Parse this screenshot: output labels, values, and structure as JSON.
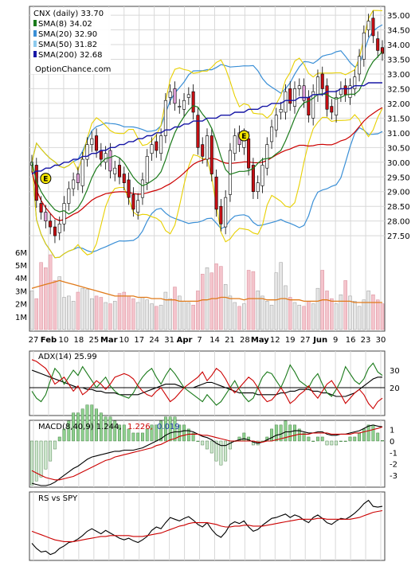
{
  "chart_data": [
    {
      "type": "candlestick",
      "panel": "price",
      "title": "CNX (daily) 33.70",
      "watermark": "OptionChance.com",
      "legend": [
        {
          "label": "SMA(8) 34.02",
          "color": "#1a7a1a"
        },
        {
          "label": "SMA(20) 32.90",
          "color": "#3a8fd6"
        },
        {
          "label": "SMA(50) 31.82",
          "color": "#8ecbee"
        },
        {
          "label": "SMA(200) 32.68",
          "color": "#1616a6"
        }
      ],
      "ylim": [
        26.8,
        35.3
      ],
      "yticks": [
        "35.00",
        "34.50",
        "34.00",
        "33.50",
        "33.00",
        "32.50",
        "32.00",
        "31.50",
        "31.00",
        "30.50",
        "30.00",
        "29.50",
        "29.00",
        "28.50",
        "28.00",
        "27.50"
      ],
      "xticks": [
        "27",
        "Feb",
        "10",
        "18",
        "25",
        "Mar",
        "10",
        "17",
        "24",
        "31",
        "Apr",
        "7",
        "14",
        "21",
        "28",
        "May",
        "12",
        "19",
        "27",
        "Jun",
        "9",
        "16",
        "23",
        "30"
      ],
      "bold_xticks": [
        "Feb",
        "Mar",
        "Apr",
        "May",
        "Jun"
      ],
      "earnings_markers": [
        {
          "label": "E",
          "close": 29.45
        },
        {
          "label": "E",
          "close": 30.9
        }
      ],
      "close": [
        30.0,
        28.7,
        28.3,
        28.0,
        27.8,
        27.5,
        27.9,
        28.6,
        29.1,
        29.4,
        29.3,
        30.1,
        30.6,
        30.8,
        30.4,
        30.1,
        30.3,
        29.7,
        29.8,
        29.5,
        29.3,
        28.8,
        28.4,
        28.7,
        29.4,
        30.2,
        30.6,
        30.4,
        30.9,
        32.1,
        32.4,
        32.0,
        31.9,
        32.1,
        32.3,
        31.7,
        30.5,
        30.2,
        30.9,
        29.6,
        28.4,
        27.9,
        28.8,
        30.4,
        30.9,
        30.6,
        30.9,
        29.8,
        29.0,
        29.3,
        29.9,
        30.6,
        31.2,
        31.6,
        31.8,
        32.4,
        32.0,
        32.5,
        32.6,
        32.1,
        31.6,
        32.4,
        32.9,
        32.5,
        31.8,
        31.7,
        32.2,
        32.5,
        32.3,
        32.6,
        32.9,
        33.6,
        34.4,
        34.8,
        34.3,
        33.8,
        33.7
      ],
      "open": [
        29.9,
        29.9,
        28.6,
        28.3,
        28.0,
        27.8,
        27.6,
        27.9,
        28.6,
        29.1,
        29.6,
        29.2,
        30.1,
        30.6,
        30.9,
        30.4,
        30.0,
        30.4,
        29.6,
        29.9,
        29.6,
        29.4,
        28.9,
        28.3,
        28.8,
        29.3,
        30.3,
        30.7,
        30.3,
        30.9,
        32.2,
        32.5,
        31.9,
        31.8,
        32.2,
        32.4,
        31.6,
        30.6,
        30.1,
        30.9,
        29.5,
        28.5,
        27.8,
        28.9,
        30.3,
        31.0,
        30.5,
        30.8,
        29.9,
        29.0,
        29.2,
        29.8,
        30.7,
        31.1,
        31.7,
        31.7,
        32.5,
        31.9,
        32.5,
        32.6,
        32.2,
        31.5,
        32.3,
        33.0,
        32.6,
        31.9,
        31.6,
        32.3,
        32.6,
        32.2,
        32.5,
        33.0,
        33.5,
        34.5,
        34.9,
        34.2,
        33.9
      ],
      "sma200": [
        29.6,
        29.7,
        29.7,
        29.8,
        29.8,
        29.9,
        29.9,
        30.0,
        30.0,
        30.1,
        30.1,
        30.2,
        30.2,
        30.3,
        30.3,
        30.4,
        30.4,
        30.5,
        30.5,
        30.6,
        30.6,
        30.7,
        30.7,
        30.8,
        30.8,
        30.9,
        30.9,
        31.0,
        31.0,
        31.1,
        31.1,
        31.2,
        31.2,
        31.3,
        31.3,
        31.4,
        31.4,
        31.4,
        31.5,
        31.5,
        31.5,
        31.6,
        31.6,
        31.6,
        31.7,
        31.7,
        31.7,
        31.8,
        31.8,
        31.8,
        31.9,
        31.9,
        32.0,
        32.0,
        32.0,
        32.1,
        32.1,
        32.1,
        32.2,
        32.2,
        32.2,
        32.3,
        32.3,
        32.3,
        32.4,
        32.4,
        32.4,
        32.5,
        32.5,
        32.5,
        32.6,
        32.6,
        32.6,
        32.7,
        32.7,
        32.7,
        32.7
      ]
    },
    {
      "type": "bar",
      "panel": "volume",
      "yticks": [
        "6M",
        "5M",
        "4M",
        "3M",
        "2M",
        "1M"
      ],
      "values_m": [
        3.0,
        2.4,
        5.2,
        4.8,
        5.8,
        3.8,
        4.1,
        2.5,
        2.6,
        2.2,
        2.9,
        3.2,
        3.1,
        2.4,
        2.6,
        2.5,
        2.1,
        2.0,
        2.2,
        2.8,
        2.9,
        2.6,
        2.4,
        2.1,
        2.5,
        2.3,
        2.0,
        1.8,
        1.9,
        2.9,
        2.4,
        3.3,
        2.6,
        2.2,
        2.1,
        1.9,
        3.0,
        4.3,
        4.8,
        4.4,
        5.1,
        4.9,
        3.5,
        2.6,
        2.1,
        1.8,
        2.0,
        4.6,
        4.5,
        3.0,
        2.6,
        2.2,
        1.9,
        4.4,
        5.2,
        3.4,
        2.5,
        2.1,
        1.9,
        1.8,
        2.2,
        2.0,
        3.2,
        4.6,
        3.0,
        2.4,
        2.0,
        2.7,
        3.8,
        2.6,
        2.2,
        1.8,
        2.3,
        3.0,
        2.7,
        2.3,
        2.0
      ],
      "avg_m": [
        3.2,
        3.3,
        3.4,
        3.5,
        3.6,
        3.7,
        3.8,
        3.7,
        3.6,
        3.5,
        3.4,
        3.3,
        3.2,
        3.1,
        3.0,
        2.9,
        2.8,
        2.7,
        2.6,
        2.6,
        2.6,
        2.6,
        2.6,
        2.5,
        2.5,
        2.5,
        2.4,
        2.4,
        2.4,
        2.3,
        2.3,
        2.3,
        2.2,
        2.2,
        2.2,
        2.2,
        2.2,
        2.3,
        2.3,
        2.4,
        2.4,
        2.5,
        2.5,
        2.4,
        2.4,
        2.4,
        2.3,
        2.4,
        2.4,
        2.4,
        2.4,
        2.3,
        2.3,
        2.3,
        2.4,
        2.4,
        2.3,
        2.3,
        2.3,
        2.2,
        2.2,
        2.2,
        2.2,
        2.3,
        2.3,
        2.2,
        2.2,
        2.2,
        2.2,
        2.2,
        2.1,
        2.1,
        2.1,
        2.1,
        2.1,
        2.1,
        2.1
      ]
    },
    {
      "type": "line",
      "panel": "adx",
      "label": "ADX(14) 25.99",
      "yticks": [
        "30",
        "20"
      ],
      "ylim": [
        5,
        40
      ],
      "reference": 20,
      "series": [
        {
          "color": "#000000",
          "values": [
            30,
            29,
            28,
            27,
            26,
            25,
            24,
            23,
            22,
            21,
            20,
            20,
            19,
            19,
            18,
            18,
            17,
            17,
            17,
            16,
            16,
            16,
            16,
            16,
            17,
            18,
            19,
            20,
            21,
            22,
            22,
            22,
            21,
            20,
            20,
            20,
            21,
            22,
            23,
            23,
            22,
            21,
            20,
            19,
            18,
            17,
            17,
            17,
            17,
            16,
            16,
            16,
            16,
            16,
            17,
            17,
            18,
            18,
            19,
            19,
            19,
            18,
            18,
            17,
            17,
            16,
            15,
            15,
            15,
            16,
            17,
            19,
            21,
            23,
            25,
            26,
            26
          ]
        },
        {
          "color": "#1a7a1a",
          "values": [
            18,
            14,
            12,
            16,
            24,
            31,
            28,
            22,
            26,
            30,
            27,
            32,
            28,
            24,
            20,
            23,
            26,
            21,
            18,
            16,
            15,
            14,
            17,
            22,
            26,
            29,
            31,
            26,
            22,
            27,
            31,
            28,
            24,
            20,
            18,
            16,
            14,
            12,
            16,
            13,
            10,
            12,
            16,
            20,
            24,
            19,
            15,
            12,
            14,
            20,
            26,
            29,
            28,
            24,
            20,
            26,
            33,
            29,
            24,
            22,
            20,
            25,
            28,
            22,
            17,
            15,
            19,
            24,
            32,
            28,
            24,
            22,
            25,
            31,
            34,
            29,
            27
          ]
        },
        {
          "color": "#cc0000",
          "values": [
            36,
            35,
            33,
            31,
            27,
            22,
            24,
            26,
            22,
            18,
            21,
            16,
            18,
            21,
            24,
            22,
            19,
            22,
            26,
            27,
            28,
            27,
            25,
            21,
            18,
            16,
            15,
            18,
            20,
            16,
            12,
            14,
            17,
            20,
            22,
            24,
            26,
            29,
            24,
            27,
            31,
            29,
            25,
            20,
            17,
            20,
            23,
            26,
            24,
            20,
            15,
            12,
            13,
            16,
            20,
            16,
            11,
            13,
            16,
            18,
            21,
            17,
            14,
            18,
            22,
            24,
            20,
            16,
            11,
            14,
            17,
            19,
            16,
            11,
            8,
            12,
            14
          ]
        }
      ]
    },
    {
      "type": "line",
      "panel": "macd",
      "label": "MACD(8,40,9) 1.244,",
      "signal_label": "1.226,",
      "hist_label": "0.019",
      "yticks": [
        "1",
        "0",
        "-1",
        "-2",
        "-3"
      ],
      "ylim": [
        -3.9,
        1.6
      ],
      "series": [
        {
          "name": "MACD",
          "color": "#000000",
          "values": [
            -3.7,
            -3.8,
            -3.9,
            -3.9,
            -3.8,
            -3.6,
            -3.3,
            -3.0,
            -2.7,
            -2.4,
            -2.2,
            -1.9,
            -1.6,
            -1.4,
            -1.3,
            -1.2,
            -1.1,
            -1.0,
            -0.9,
            -0.9,
            -0.8,
            -0.8,
            -0.8,
            -0.7,
            -0.6,
            -0.4,
            -0.2,
            0.0,
            0.2,
            0.5,
            0.7,
            0.8,
            0.8,
            0.9,
            0.9,
            0.8,
            0.6,
            0.4,
            0.3,
            0.1,
            -0.2,
            -0.4,
            -0.4,
            -0.2,
            0.0,
            0.1,
            0.2,
            0.1,
            -0.1,
            -0.2,
            -0.1,
            0.1,
            0.3,
            0.5,
            0.6,
            0.8,
            0.8,
            0.9,
            0.9,
            0.8,
            0.7,
            0.7,
            0.8,
            0.8,
            0.6,
            0.5,
            0.5,
            0.6,
            0.6,
            0.7,
            0.8,
            0.9,
            1.1,
            1.3,
            1.4,
            1.3,
            1.24
          ]
        },
        {
          "name": "Signal",
          "color": "#cc0000",
          "values": [
            -2.6,
            -2.8,
            -3.0,
            -3.2,
            -3.3,
            -3.4,
            -3.4,
            -3.3,
            -3.2,
            -3.1,
            -2.9,
            -2.7,
            -2.5,
            -2.3,
            -2.1,
            -1.9,
            -1.7,
            -1.6,
            -1.4,
            -1.3,
            -1.2,
            -1.1,
            -1.0,
            -0.9,
            -0.8,
            -0.7,
            -0.6,
            -0.4,
            -0.3,
            -0.1,
            0.1,
            0.2,
            0.4,
            0.5,
            0.6,
            0.6,
            0.6,
            0.5,
            0.5,
            0.4,
            0.3,
            0.2,
            0.1,
            0.0,
            0.0,
            0.0,
            0.0,
            0.0,
            0.0,
            -0.1,
            -0.1,
            0.0,
            0.0,
            0.1,
            0.2,
            0.3,
            0.4,
            0.5,
            0.6,
            0.6,
            0.6,
            0.7,
            0.7,
            0.7,
            0.7,
            0.6,
            0.6,
            0.6,
            0.6,
            0.6,
            0.7,
            0.7,
            0.8,
            0.9,
            1.0,
            1.1,
            1.226
          ]
        }
      ]
    },
    {
      "type": "line",
      "panel": "rs",
      "label": "RS vs SPY",
      "series": [
        {
          "name": "RS",
          "color": "#000000",
          "values": [
            3.0,
            2.4,
            2.0,
            2.1,
            1.7,
            1.9,
            2.4,
            2.7,
            3.1,
            3.2,
            3.5,
            3.9,
            4.4,
            4.7,
            4.4,
            4.1,
            4.5,
            4.2,
            3.9,
            3.6,
            3.4,
            3.6,
            3.3,
            3.1,
            3.4,
            3.8,
            4.5,
            4.9,
            4.7,
            5.4,
            6.0,
            5.8,
            5.6,
            5.9,
            6.1,
            5.7,
            5.2,
            4.9,
            5.4,
            4.6,
            4.0,
            3.7,
            4.3,
            5.2,
            5.5,
            5.3,
            5.6,
            4.9,
            4.4,
            4.6,
            5.1,
            5.5,
            5.9,
            6.0,
            6.2,
            6.4,
            6.0,
            6.3,
            6.1,
            5.7,
            5.4,
            6.0,
            6.3,
            5.9,
            5.4,
            5.2,
            5.6,
            5.9,
            5.8,
            6.1,
            6.5,
            7.0,
            7.6,
            8.0,
            7.3,
            7.2,
            7.3
          ]
        },
        {
          "name": "RS avg",
          "color": "#cc0000",
          "values": [
            4.4,
            4.2,
            4.0,
            3.8,
            3.6,
            3.4,
            3.3,
            3.2,
            3.2,
            3.2,
            3.3,
            3.4,
            3.5,
            3.6,
            3.7,
            3.8,
            3.8,
            3.9,
            3.9,
            3.9,
            3.9,
            3.9,
            3.8,
            3.8,
            3.8,
            3.9,
            4.0,
            4.1,
            4.2,
            4.4,
            4.6,
            4.8,
            5.0,
            5.1,
            5.3,
            5.4,
            5.4,
            5.4,
            5.4,
            5.3,
            5.2,
            5.0,
            4.9,
            4.9,
            5.0,
            5.0,
            5.1,
            5.1,
            5.0,
            5.0,
            5.0,
            5.1,
            5.2,
            5.3,
            5.4,
            5.5,
            5.6,
            5.7,
            5.8,
            5.8,
            5.8,
            5.8,
            5.9,
            5.9,
            5.8,
            5.8,
            5.8,
            5.8,
            5.8,
            5.8,
            5.9,
            6.0,
            6.2,
            6.4,
            6.6,
            6.7,
            6.8
          ]
        }
      ]
    }
  ]
}
